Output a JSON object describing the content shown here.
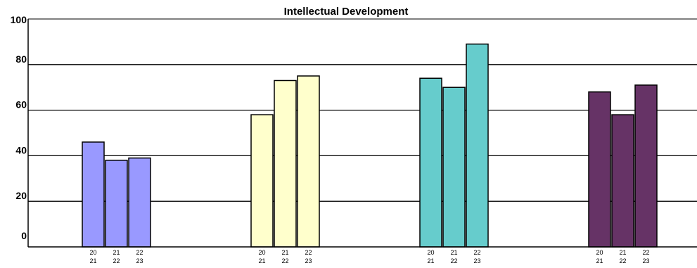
{
  "chart_data": {
    "type": "bar",
    "title": "Intellectual Development",
    "xlabel": "",
    "ylabel": "",
    "ylim": [
      0,
      100
    ],
    "yticks": [
      "0",
      "20",
      "40",
      "60",
      "80",
      "100"
    ],
    "grid": true,
    "groups": [
      {
        "color": "#9999ff",
        "bars": [
          {
            "label": [
              "20",
              "21"
            ],
            "value": 46
          },
          {
            "label": [
              "21",
              "22"
            ],
            "value": 38
          },
          {
            "label": [
              "22",
              "23"
            ],
            "value": 39
          }
        ]
      },
      {
        "color": "#ffffcc",
        "bars": [
          {
            "label": [
              "20",
              "21"
            ],
            "value": 58
          },
          {
            "label": [
              "21",
              "22"
            ],
            "value": 73
          },
          {
            "label": [
              "22",
              "23"
            ],
            "value": 75
          }
        ]
      },
      {
        "color": "#66cccc",
        "bars": [
          {
            "label": [
              "20",
              "21"
            ],
            "value": 74
          },
          {
            "label": [
              "21",
              "22"
            ],
            "value": 70
          },
          {
            "label": [
              "22",
              "23"
            ],
            "value": 89
          }
        ]
      },
      {
        "color": "#663366",
        "bars": [
          {
            "label": [
              "20",
              "21"
            ],
            "value": 68
          },
          {
            "label": [
              "21",
              "22"
            ],
            "value": 58
          },
          {
            "label": [
              "22",
              "23"
            ],
            "value": 71
          }
        ]
      }
    ]
  }
}
